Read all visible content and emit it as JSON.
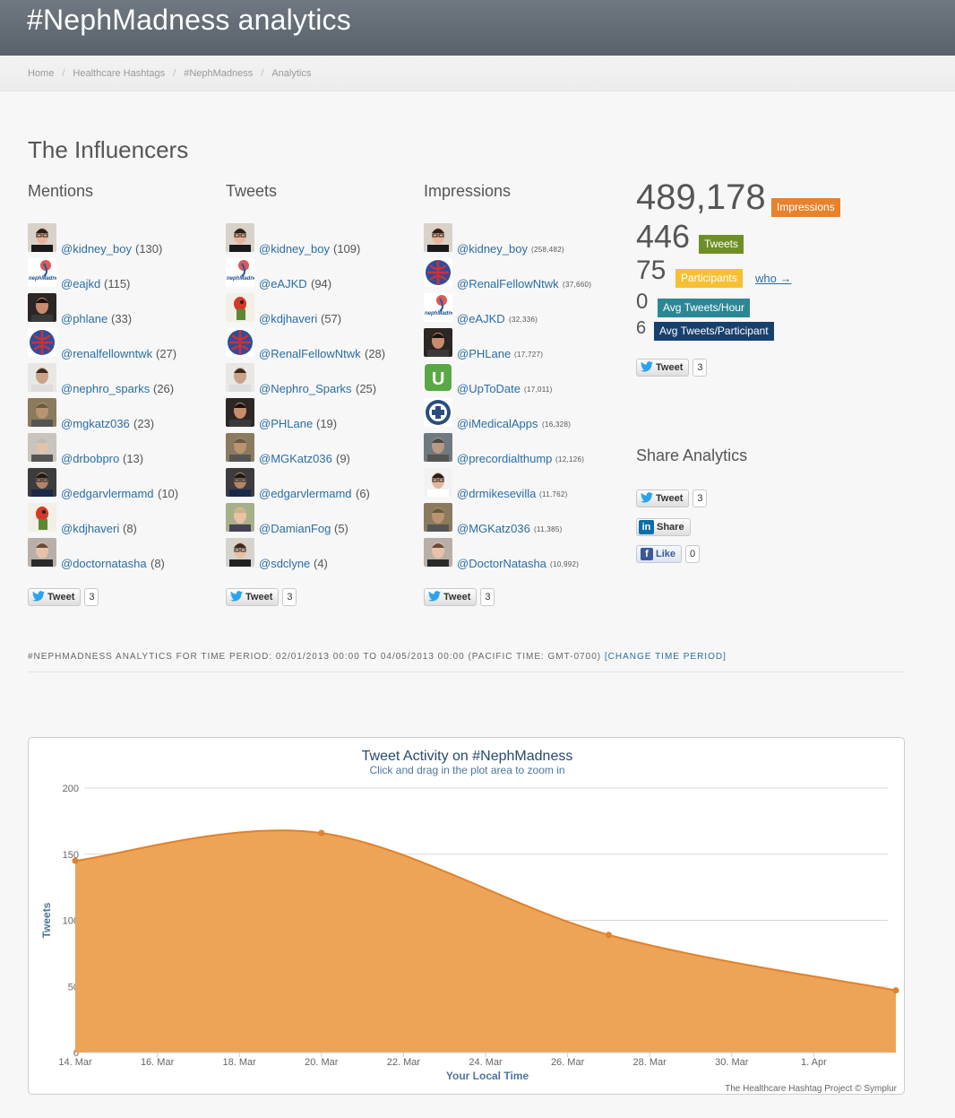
{
  "header": {
    "title": "#NephMadness analytics"
  },
  "breadcrumb": {
    "items": [
      "Home",
      "Healthcare Hashtags",
      "#NephMadness",
      "Analytics"
    ]
  },
  "influencers": {
    "title": "The Influencers",
    "mentions": {
      "heading": "Mentions",
      "items": [
        {
          "name": "@kidney_boy",
          "count": "(130)",
          "avatar": "kidney"
        },
        {
          "name": "@eajkd",
          "count": "(115)",
          "avatar": "neph"
        },
        {
          "name": "@phlane",
          "count": "(33)",
          "avatar": "phlane"
        },
        {
          "name": "@renalfellowntwk",
          "count": "(27)",
          "avatar": "globe"
        },
        {
          "name": "@nephro_sparks",
          "count": "(26)",
          "avatar": "sparks"
        },
        {
          "name": "@mgkatz036",
          "count": "(23)",
          "avatar": "katz"
        },
        {
          "name": "@drbobpro",
          "count": "(13)",
          "avatar": "bob"
        },
        {
          "name": "@edgarvlermamd",
          "count": "(10)",
          "avatar": "edgar"
        },
        {
          "name": "@kdjhaveri",
          "count": "(8)",
          "avatar": "parrot"
        },
        {
          "name": "@doctornatasha",
          "count": "(8)",
          "avatar": "natasha"
        }
      ],
      "tweet_label": "Tweet",
      "tweet_count": "3"
    },
    "tweets": {
      "heading": "Tweets",
      "items": [
        {
          "name": "@kidney_boy",
          "count": "(109)",
          "avatar": "kidney"
        },
        {
          "name": "@eAJKD",
          "count": "(94)",
          "avatar": "neph"
        },
        {
          "name": "@kdjhaveri",
          "count": "(57)",
          "avatar": "parrot"
        },
        {
          "name": "@RenalFellowNtwk",
          "count": "(28)",
          "avatar": "globe"
        },
        {
          "name": "@Nephro_Sparks",
          "count": "(25)",
          "avatar": "sparks"
        },
        {
          "name": "@PHLane",
          "count": "(19)",
          "avatar": "phlane"
        },
        {
          "name": "@MGKatz036",
          "count": "(9)",
          "avatar": "katz"
        },
        {
          "name": "@edgarvlermamd",
          "count": "(6)",
          "avatar": "edgar"
        },
        {
          "name": "@DamianFog",
          "count": "(5)",
          "avatar": "damian"
        },
        {
          "name": "@sdclyne",
          "count": "(4)",
          "avatar": "sdclyne"
        }
      ],
      "tweet_label": "Tweet",
      "tweet_count": "3"
    },
    "impressions": {
      "heading": "Impressions",
      "items": [
        {
          "name": "@kidney_boy",
          "count": "(258,482)",
          "avatar": "kidney"
        },
        {
          "name": "@RenalFellowNtwk",
          "count": "(37,660)",
          "avatar": "globe"
        },
        {
          "name": "@eAJKD",
          "count": "(32,336)",
          "avatar": "neph"
        },
        {
          "name": "@PHLane",
          "count": "(17,727)",
          "avatar": "phlane"
        },
        {
          "name": "@UpToDate",
          "count": "(17,011)",
          "avatar": "uptodate"
        },
        {
          "name": "@iMedicalApps",
          "count": "(16,328)",
          "avatar": "imed"
        },
        {
          "name": "@precordialthump",
          "count": "(12,126)",
          "avatar": "precord"
        },
        {
          "name": "@drmikesevilla",
          "count": "(11,762)",
          "avatar": "mike"
        },
        {
          "name": "@MGKatz036",
          "count": "(11,385)",
          "avatar": "katz"
        },
        {
          "name": "@DoctorNatasha",
          "count": "(10,992)",
          "avatar": "natasha"
        }
      ],
      "tweet_label": "Tweet",
      "tweet_count": "3"
    }
  },
  "stats": {
    "impressions": {
      "value": "489,178",
      "label": "Impressions",
      "color": "#e8822c"
    },
    "tweets": {
      "value": "446",
      "label": "Tweets",
      "color": "#6e8f26"
    },
    "participants": {
      "value": "75",
      "label": "Participants",
      "color": "#f7c033",
      "who": "who →"
    },
    "avg_hour": {
      "value": "0",
      "label": "Avg Tweets/Hour",
      "color": "#2b8796"
    },
    "avg_participant": {
      "value": "6",
      "label": "Avg Tweets/Participant",
      "color": "#17406d"
    },
    "tweet_label": "Tweet",
    "tweet_count": "3"
  },
  "share": {
    "heading": "Share Analytics",
    "tweet_label": "Tweet",
    "tweet_count": "3",
    "linkedin_label": "Share",
    "like_label": "Like",
    "like_count": "0"
  },
  "period": {
    "text": "#NephMadness analytics for time period: 02/01/2013 00:00 to 04/05/2013 00:00 (Pacific Time: GMT-0700)",
    "link": "[change time period]"
  },
  "chart_data": {
    "type": "area",
    "title": "Tweet Activity on #NephMadness",
    "subtitle": "Click and drag in the plot area to zoom in",
    "xlabel": "Your Local Time",
    "ylabel": "Tweets",
    "ylim": [
      0,
      200
    ],
    "yticks": [
      0,
      50,
      100,
      150,
      200
    ],
    "xticks": [
      "14. Mar",
      "16. Mar",
      "18. Mar",
      "20. Mar",
      "22. Mar",
      "24. Mar",
      "26. Mar",
      "28. Mar",
      "30. Mar",
      "1. Apr"
    ],
    "x": [
      "2013-03-14",
      "2013-03-20",
      "2013-03-27",
      "2013-04-03"
    ],
    "values": [
      145,
      166,
      89,
      47
    ],
    "color": "#eda457",
    "line_color": "#e0822e",
    "credits": "The Healthcare Hashtag Project © Symplur"
  }
}
